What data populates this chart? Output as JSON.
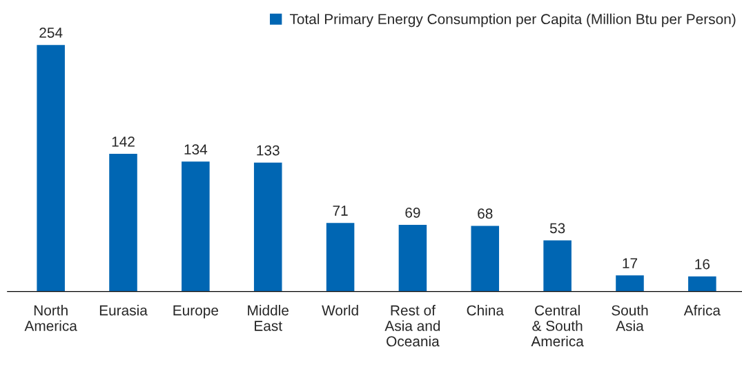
{
  "chart_data": {
    "type": "bar",
    "categories": [
      "North\nAmerica",
      "Eurasia",
      "Europe",
      "Middle\nEast",
      "World",
      "Rest of\nAsia and\nOceania",
      "China",
      "Central\n& South\nAmerica",
      "South\nAsia",
      "Africa"
    ],
    "series": [
      {
        "name": "Total Primary Energy Consumption per Capita (Million Btu per Person)",
        "color": "#0066b3",
        "values": [
          254,
          142,
          134,
          133,
          71,
          69,
          68,
          53,
          17,
          16
        ]
      }
    ],
    "data_labels": true,
    "legend": "top right",
    "grid": false
  }
}
